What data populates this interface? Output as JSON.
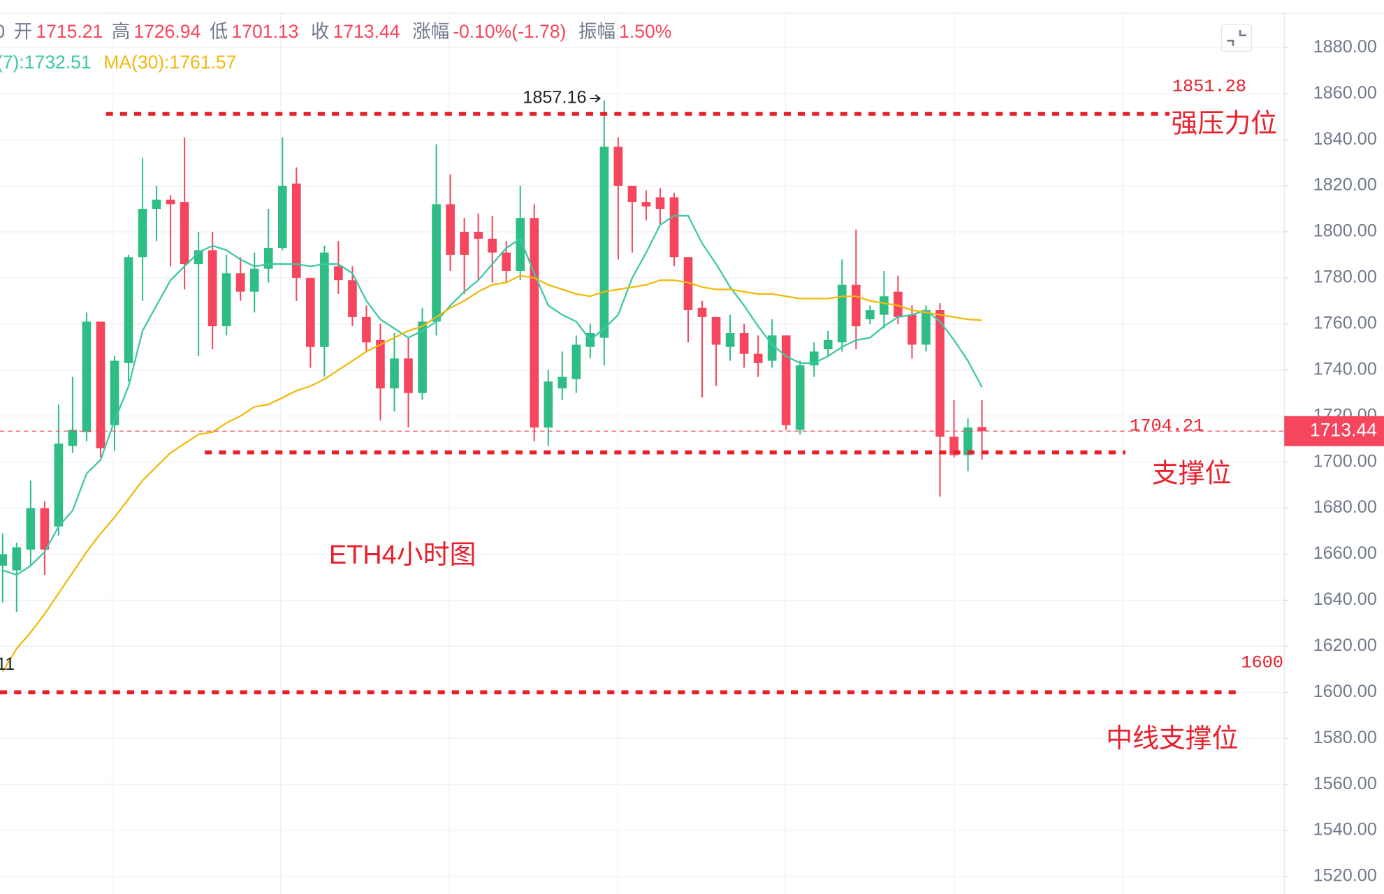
{
  "chart_data": {
    "type": "candlestick",
    "header": {
      "prefix": "0",
      "items": [
        {
          "label": "开",
          "value": "1715.21"
        },
        {
          "label": "高",
          "value": "1726.94"
        },
        {
          "label": "低",
          "value": "1701.13"
        },
        {
          "label": "收",
          "value": "1713.44"
        },
        {
          "label": "涨幅",
          "value": "-0.10%(-1.78)"
        },
        {
          "label": "振幅",
          "value": "1.50%"
        }
      ]
    },
    "up_color": "#2ebd85",
    "down_color": "#f6465d",
    "open": [
      1655,
      1653,
      1662,
      1680,
      1672,
      1707,
      1713,
      1761,
      1716,
      1743,
      1789,
      1810,
      1814,
      1813,
      1786,
      1792,
      1759,
      1782,
      1774,
      1784,
      1793,
      1821,
      1780,
      1750,
      1785,
      1779,
      1763,
      1753,
      1732,
      1745,
      1730,
      1761,
      1812,
      1800,
      1800,
      1797,
      1791,
      1783,
      1806,
      1715,
      1732,
      1736,
      1750,
      1754,
      1837,
      1820,
      1813,
      1815,
      1815,
      1789,
      1767,
      1763,
      1750,
      1756,
      1747,
      1744,
      1755,
      1714,
      1742,
      1749,
      1752,
      1777,
      1762,
      1764,
      1774,
      1764,
      1751,
      1766,
      1711,
      1703,
      1715.21
    ],
    "high": [
      1669,
      1665,
      1692,
      1683,
      1725,
      1737,
      1765,
      1761,
      1746,
      1790,
      1832,
      1820,
      1816,
      1841,
      1800,
      1800,
      1790,
      1789,
      1791,
      1810,
      1841,
      1828,
      1780,
      1794,
      1796,
      1785,
      1768,
      1760,
      1756,
      1754,
      1767,
      1838,
      1825,
      1806,
      1808,
      1807,
      1796,
      1820,
      1812,
      1740,
      1748,
      1755,
      1760,
      1857.16,
      1841,
      1820,
      1818,
      1819,
      1817,
      1789,
      1770,
      1763,
      1764,
      1760,
      1755,
      1762,
      1755,
      1744,
      1752,
      1757,
      1788,
      1801,
      1768,
      1783,
      1781,
      1768,
      1768,
      1769,
      1727,
      1719,
      1726.94
    ],
    "low": [
      1639,
      1635,
      1655,
      1651,
      1668,
      1704,
      1709,
      1702,
      1705,
      1735,
      1770,
      1796,
      1785,
      1775,
      1746,
      1749,
      1755,
      1770,
      1765,
      1778,
      1792,
      1770,
      1741,
      1737,
      1773,
      1759,
      1748,
      1718,
      1722,
      1715,
      1727,
      1755,
      1783,
      1773,
      1779,
      1778,
      1778,
      1779,
      1709,
      1707,
      1727,
      1730,
      1745,
      1742,
      1788,
      1791,
      1805,
      1803,
      1785,
      1752,
      1728,
      1733,
      1744,
      1741,
      1737,
      1741,
      1714,
      1712,
      1737,
      1746,
      1748,
      1749,
      1760,
      1758,
      1760,
      1745,
      1748,
      1685,
      1702,
      1696,
      1701.13
    ],
    "close": [
      1660,
      1663,
      1680,
      1662,
      1708,
      1714,
      1761,
      1706,
      1744,
      1789,
      1810,
      1814,
      1812,
      1786,
      1792,
      1759,
      1782,
      1774,
      1784,
      1793,
      1820,
      1780,
      1750,
      1791,
      1779,
      1763,
      1752,
      1732,
      1745,
      1730,
      1761,
      1812,
      1790,
      1790,
      1797,
      1791,
      1783,
      1806,
      1715,
      1735,
      1737,
      1751,
      1756,
      1837,
      1820,
      1813,
      1811,
      1810,
      1789,
      1766,
      1763,
      1751,
      1756,
      1747,
      1743,
      1755,
      1716,
      1742,
      1748,
      1753,
      1777,
      1759,
      1766,
      1772,
      1763,
      1751,
      1766,
      1711,
      1703,
      1715,
      1713.44
    ],
    "series": [
      {
        "name": "(7):1732.51",
        "color": "#3cc8a4",
        "values": [
          1653,
          1651,
          1655,
          1661,
          1672,
          1679,
          1695,
          1701,
          1718,
          1733,
          1757,
          1768,
          1779,
          1785,
          1791,
          1794,
          1792,
          1788,
          1785,
          1786,
          1786,
          1786,
          1785,
          1786,
          1786,
          1782,
          1770,
          1762,
          1758,
          1754,
          1757,
          1761,
          1768,
          1774,
          1779,
          1786,
          1793,
          1797,
          1782,
          1768,
          1764,
          1761,
          1753,
          1758,
          1764,
          1780,
          1791,
          1803,
          1807,
          1807,
          1795,
          1786,
          1776,
          1768,
          1759,
          1751,
          1746,
          1743,
          1743,
          1746,
          1750,
          1753,
          1754,
          1759,
          1763,
          1764,
          1766,
          1761,
          1753,
          1744,
          1732.51
        ]
      },
      {
        "name": "MA(30):1761.57",
        "color": "#f0b90b",
        "values": [
          1609,
          1619,
          1626,
          1634,
          1643,
          1652,
          1661,
          1669,
          1676,
          1684,
          1692,
          1698,
          1704,
          1708,
          1712,
          1713,
          1717,
          1720,
          1724,
          1725,
          1728,
          1731,
          1733,
          1736,
          1740,
          1744,
          1748,
          1751,
          1754,
          1757,
          1759,
          1763,
          1767,
          1770,
          1774,
          1777,
          1778,
          1781,
          1780,
          1777,
          1775,
          1773,
          1772,
          1774,
          1775,
          1776,
          1777,
          1779,
          1779,
          1778,
          1776,
          1775,
          1775,
          1774,
          1773,
          1773,
          1772,
          1771,
          1771,
          1771,
          1772,
          1772,
          1770,
          1769,
          1768,
          1766,
          1765,
          1764,
          1763,
          1762,
          1761.57
        ]
      }
    ],
    "ylim": [
      1512.4,
      1900.7
    ],
    "yticks": [
      {
        "value": 1520,
        "label": "1520.00"
      },
      {
        "value": 1540,
        "label": "1540.00"
      },
      {
        "value": 1560,
        "label": "1560.00"
      },
      {
        "value": 1580,
        "label": "1580.00"
      },
      {
        "value": 1600,
        "label": "1600.00"
      },
      {
        "value": 1620,
        "label": "1620.00"
      },
      {
        "value": 1640,
        "label": "1640.00"
      },
      {
        "value": 1660,
        "label": "1660.00"
      },
      {
        "value": 1680,
        "label": "1680.00"
      },
      {
        "value": 1700,
        "label": "1700.00"
      },
      {
        "value": 1720,
        "label": "1720.00"
      },
      {
        "value": 1740,
        "label": "1740.00"
      },
      {
        "value": 1760,
        "label": "1760.00"
      },
      {
        "value": 1780,
        "label": "1780.00"
      },
      {
        "value": 1800,
        "label": "1800.00"
      },
      {
        "value": 1820,
        "label": "1820.00"
      },
      {
        "value": 1840,
        "label": "1840.00"
      },
      {
        "value": 1860,
        "label": "1860.00"
      },
      {
        "value": 1880,
        "label": "1880.00"
      }
    ],
    "grid": true,
    "levels": [
      {
        "value": 1851.28,
        "label": "强压力位"
      },
      {
        "value": 1704.21,
        "label": "支撑位"
      },
      {
        "value": 1600,
        "label": "中线支撑位"
      }
    ],
    "annotations": [
      "ETH4小时图",
      "11"
    ]
  }
}
